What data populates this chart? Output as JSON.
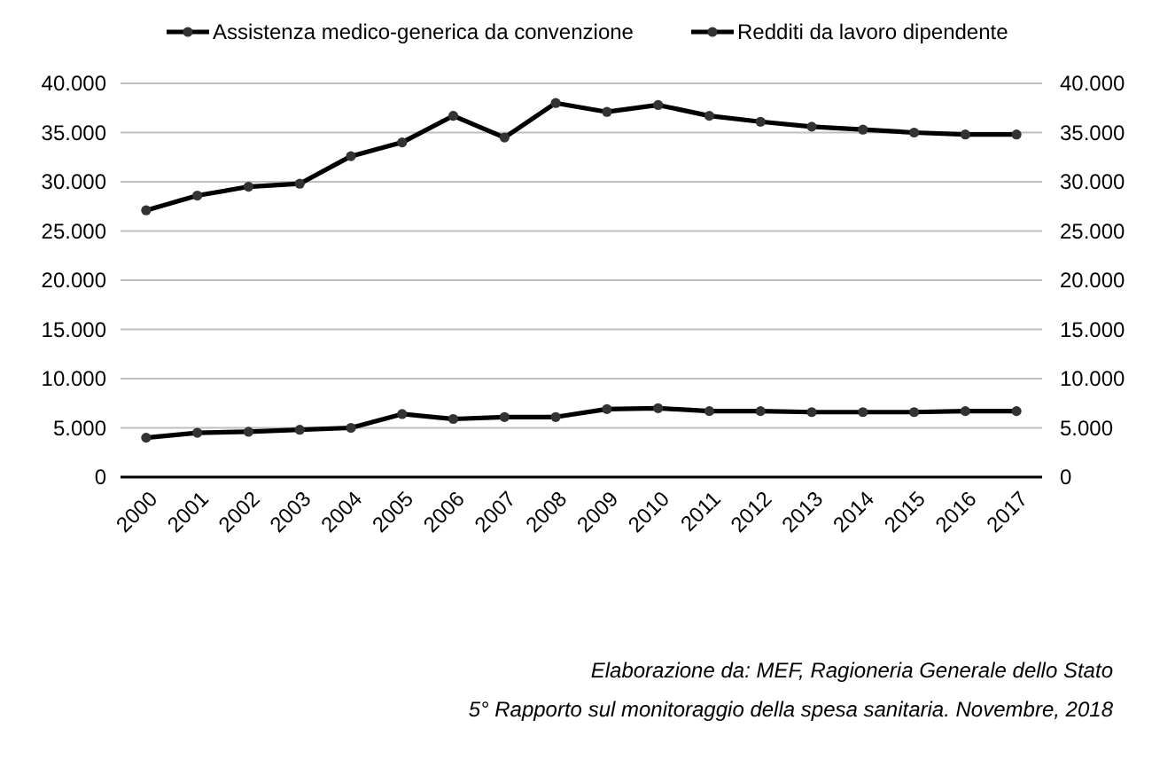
{
  "chart_data": {
    "type": "line",
    "categories": [
      "2000",
      "2001",
      "2002",
      "2003",
      "2004",
      "2005",
      "2006",
      "2007",
      "2008",
      "2009",
      "2010",
      "2011",
      "2012",
      "2013",
      "2014",
      "2015",
      "2016",
      "2017"
    ],
    "series": [
      {
        "name": "Assistenza medico-generica da convenzione",
        "color": "#000000",
        "values": [
          4000,
          4500,
          4600,
          4800,
          5000,
          6400,
          5900,
          6100,
          6100,
          6900,
          7000,
          6700,
          6700,
          6600,
          6600,
          6600,
          6700,
          6700
        ]
      },
      {
        "name": "Redditi da lavoro dipendente",
        "color": "#000000",
        "values": [
          27100,
          28600,
          29500,
          29800,
          32600,
          34000,
          36700,
          34500,
          38000,
          37100,
          37800,
          36700,
          36100,
          35600,
          35300,
          35000,
          34800,
          34800
        ]
      }
    ],
    "ylim": [
      0,
      40000
    ],
    "yticks": [
      0,
      {
        "value": 5000,
        "label": "5.000"
      },
      {
        "value": 10000,
        "label": "10.000"
      },
      {
        "value": 15000,
        "label": "15.000"
      },
      {
        "value": 20000,
        "label": "20.000"
      },
      {
        "value": 25000,
        "label": "25.000"
      },
      {
        "value": 30000,
        "label": "30.000"
      },
      {
        "value": 35000,
        "label": "35.000"
      },
      {
        "value": 40000,
        "label": "40.000"
      }
    ],
    "y2lim": [
      0,
      40000
    ],
    "y2ticks": [
      0,
      {
        "value": 5000,
        "label": "5.000"
      },
      {
        "value": 10000,
        "label": "10.000"
      },
      {
        "value": 15000,
        "label": "15.000"
      },
      {
        "value": 20000,
        "label": "20.000"
      },
      {
        "value": 25000,
        "label": "25.000"
      },
      {
        "value": 30000,
        "label": "30.000"
      },
      {
        "value": 35000,
        "label": "35.000"
      },
      {
        "value": 40000,
        "label": "40.000"
      }
    ],
    "grid": "y",
    "legend": "top",
    "marker": "circle",
    "line_style": "solid",
    "annotations": [
      "Elaborazione da: MEF, Ragioneria Generale dello Stato",
      "5° Rapporto sul monitoraggio della spesa sanitaria. Novembre, 2018"
    ]
  }
}
